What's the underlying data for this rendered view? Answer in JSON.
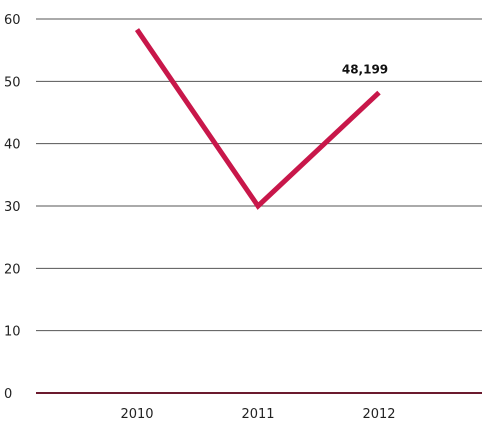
{
  "chart_data": {
    "type": "line",
    "x": [
      "2010",
      "2011",
      "2012"
    ],
    "series": [
      {
        "values": [
          58.3,
          30,
          48.2
        ]
      }
    ],
    "annotations": [
      {
        "x": "2012",
        "text": "48,199"
      }
    ],
    "yticks": [
      0,
      10,
      20,
      30,
      40,
      50,
      60
    ],
    "ytick_labels": [
      "0",
      "10",
      "20",
      "30",
      "40",
      "50",
      "60"
    ],
    "ylim": [
      0,
      60
    ],
    "grid": true,
    "colors": {
      "line": "#c8174a",
      "grid": "#555555",
      "baseline": "#6b1a2e"
    }
  }
}
